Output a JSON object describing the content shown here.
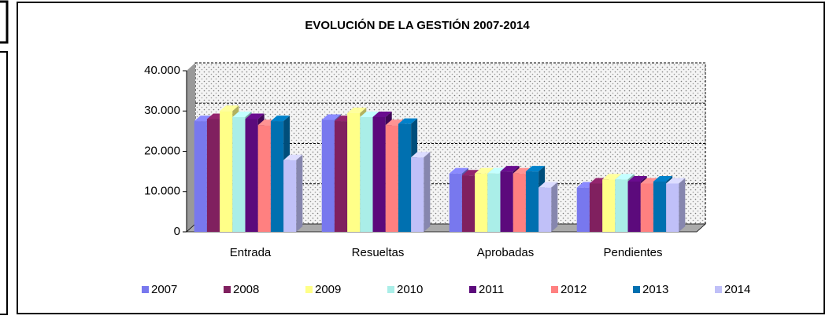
{
  "chart_data": {
    "type": "bar3d",
    "title": "EVOLUCIÓN DE LA GESTIÓN 2007-2014",
    "categories": [
      "Entrada",
      "Resueltas",
      "Aprobadas",
      "Pendientes"
    ],
    "series": [
      {
        "name": "2007",
        "color": "#7878ee",
        "values": [
          27500,
          27800,
          14500,
          11000
        ]
      },
      {
        "name": "2008",
        "color": "#80205f",
        "values": [
          28000,
          27500,
          14000,
          12000
        ]
      },
      {
        "name": "2009",
        "color": "#ffff88",
        "values": [
          30000,
          29500,
          14500,
          13000
        ]
      },
      {
        "name": "2010",
        "color": "#aaeee8",
        "values": [
          28500,
          28500,
          14500,
          13000
        ]
      },
      {
        "name": "2011",
        "color": "#5c0a7c",
        "values": [
          28000,
          28500,
          15000,
          12500
        ]
      },
      {
        "name": "2012",
        "color": "#ff8080",
        "values": [
          26500,
          26500,
          14500,
          12000
        ]
      },
      {
        "name": "2013",
        "color": "#0070b0",
        "values": [
          27500,
          26800,
          15000,
          12500
        ]
      },
      {
        "name": "2014",
        "color": "#c0c0f8",
        "values": [
          17800,
          18500,
          11000,
          12000
        ]
      }
    ],
    "ylim": [
      0,
      40000
    ],
    "yticks": [
      0,
      {
        "value": 10000,
        "label": "10.000"
      },
      {
        "value": 20000,
        "label": "20.000"
      },
      {
        "value": 30000,
        "label": "30.000"
      },
      {
        "value": 40000,
        "label": "40.000"
      }
    ],
    "grid": true,
    "legend": "bottom"
  }
}
